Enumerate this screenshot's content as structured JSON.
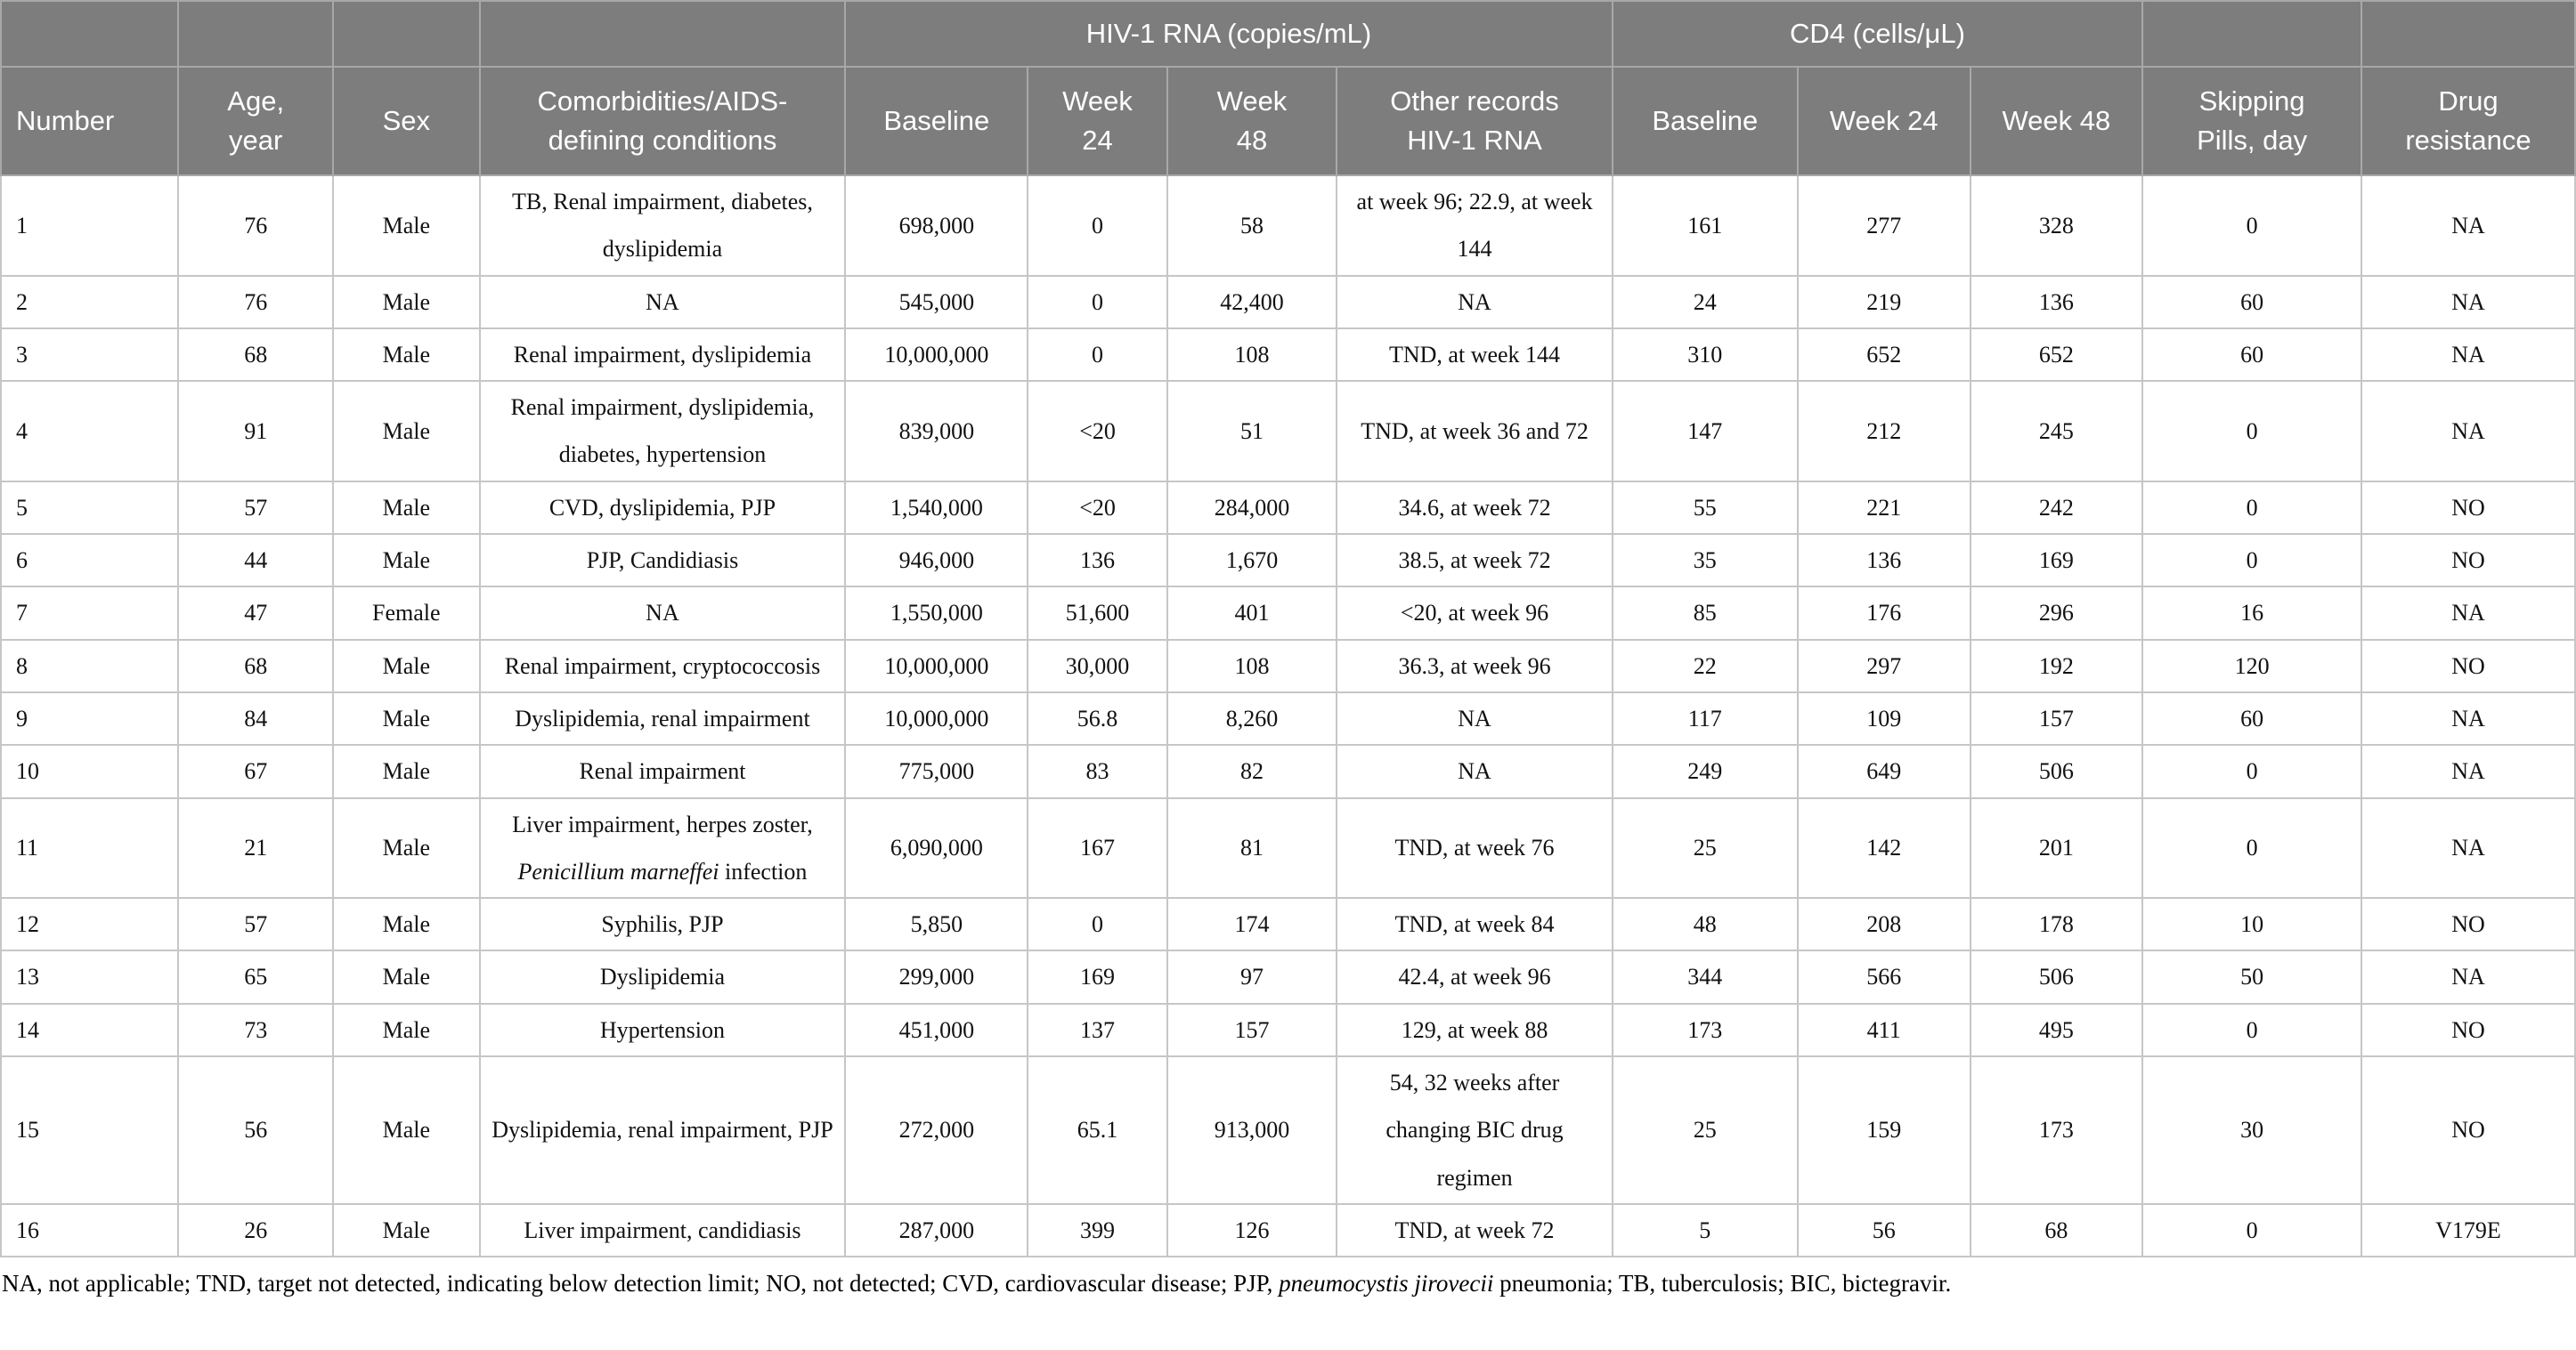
{
  "table": {
    "header_groups": [
      {
        "label": "",
        "colspan": 1
      },
      {
        "label": "",
        "colspan": 1
      },
      {
        "label": "",
        "colspan": 1
      },
      {
        "label": "",
        "colspan": 1
      },
      {
        "label": "HIV-1 RNA (copies/mL)",
        "colspan": 4
      },
      {
        "label": "CD4 (cells/μL)",
        "colspan": 3
      },
      {
        "label": "",
        "colspan": 1
      },
      {
        "label": "",
        "colspan": 1
      }
    ],
    "columns": [
      "Number",
      "Age,\nyear",
      "Sex",
      "Comorbidities/AIDS-\ndefining conditions",
      "Baseline",
      "Week\n24",
      "Week\n48",
      "Other records\nHIV-1 RNA",
      "Baseline",
      "Week 24",
      "Week 48",
      "Skipping\nPills, day",
      "Drug\nresistance"
    ],
    "rows": [
      [
        "1",
        "76",
        "Male",
        "TB, Renal impairment, diabetes, dyslipidemia",
        "698,000",
        "0",
        "58",
        "at week 96; 22.9, at week 144",
        "161",
        "277",
        "328",
        "0",
        "NA"
      ],
      [
        "2",
        "76",
        "Male",
        "NA",
        "545,000",
        "0",
        "42,400",
        "NA",
        "24",
        "219",
        "136",
        "60",
        "NA"
      ],
      [
        "3",
        "68",
        "Male",
        "Renal impairment, dyslipidemia",
        "10,000,000",
        "0",
        "108",
        "TND, at week 144",
        "310",
        "652",
        "652",
        "60",
        "NA"
      ],
      [
        "4",
        "91",
        "Male",
        "Renal impairment, dyslipidemia, diabetes, hypertension",
        "839,000",
        "<20",
        "51",
        "TND, at week 36 and 72",
        "147",
        "212",
        "245",
        "0",
        "NA"
      ],
      [
        "5",
        "57",
        "Male",
        "CVD, dyslipidemia, PJP",
        "1,540,000",
        "<20",
        "284,000",
        "34.6, at week 72",
        "55",
        "221",
        "242",
        "0",
        "NO"
      ],
      [
        "6",
        "44",
        "Male",
        "PJP, Candidiasis",
        "946,000",
        "136",
        "1,670",
        "38.5, at week 72",
        "35",
        "136",
        "169",
        "0",
        "NO"
      ],
      [
        "7",
        "47",
        "Female",
        "NA",
        "1,550,000",
        "51,600",
        "401",
        "<20, at week 96",
        "85",
        "176",
        "296",
        "16",
        "NA"
      ],
      [
        "8",
        "68",
        "Male",
        "Renal impairment, cryptococcosis",
        "10,000,000",
        "30,000",
        "108",
        "36.3, at week 96",
        "22",
        "297",
        "192",
        "120",
        "NO"
      ],
      [
        "9",
        "84",
        "Male",
        "Dyslipidemia, renal impairment",
        "10,000,000",
        "56.8",
        "8,260",
        "NA",
        "117",
        "109",
        "157",
        "60",
        "NA"
      ],
      [
        "10",
        "67",
        "Male",
        "Renal impairment",
        "775,000",
        "83",
        "82",
        "NA",
        "249",
        "649",
        "506",
        "0",
        "NA"
      ],
      [
        "11",
        "21",
        "Male",
        "Liver impairment, herpes zoster, *Penicillium marneffei* infection",
        "6,090,000",
        "167",
        "81",
        "TND, at week 76",
        "25",
        "142",
        "201",
        "0",
        "NA"
      ],
      [
        "12",
        "57",
        "Male",
        "Syphilis, PJP",
        "5,850",
        "0",
        "174",
        "TND, at week 84",
        "48",
        "208",
        "178",
        "10",
        "NO"
      ],
      [
        "13",
        "65",
        "Male",
        "Dyslipidemia",
        "299,000",
        "169",
        "97",
        "42.4, at week 96",
        "344",
        "566",
        "506",
        "50",
        "NA"
      ],
      [
        "14",
        "73",
        "Male",
        "Hypertension",
        "451,000",
        "137",
        "157",
        "129, at week 88",
        "173",
        "411",
        "495",
        "0",
        "NO"
      ],
      [
        "15",
        "56",
        "Male",
        "Dyslipidemia, renal impairment, PJP",
        "272,000",
        "65.1",
        "913,000",
        "54, 32 weeks after changing BIC drug regimen",
        "25",
        "159",
        "173",
        "30",
        "NO"
      ],
      [
        "16",
        "26",
        "Male",
        "Liver impairment, candidiasis",
        "287,000",
        "399",
        "126",
        "TND, at week 72",
        "5",
        "56",
        "68",
        "0",
        "V179E"
      ]
    ]
  },
  "footnote": "NA, not applicable; TND, target not detected, indicating below detection limit; NO, not detected; CVD, cardiovascular disease; PJP, *pneumocystis jirovecii* pneumonia; TB, tuberculosis; BIC, bictegravir."
}
